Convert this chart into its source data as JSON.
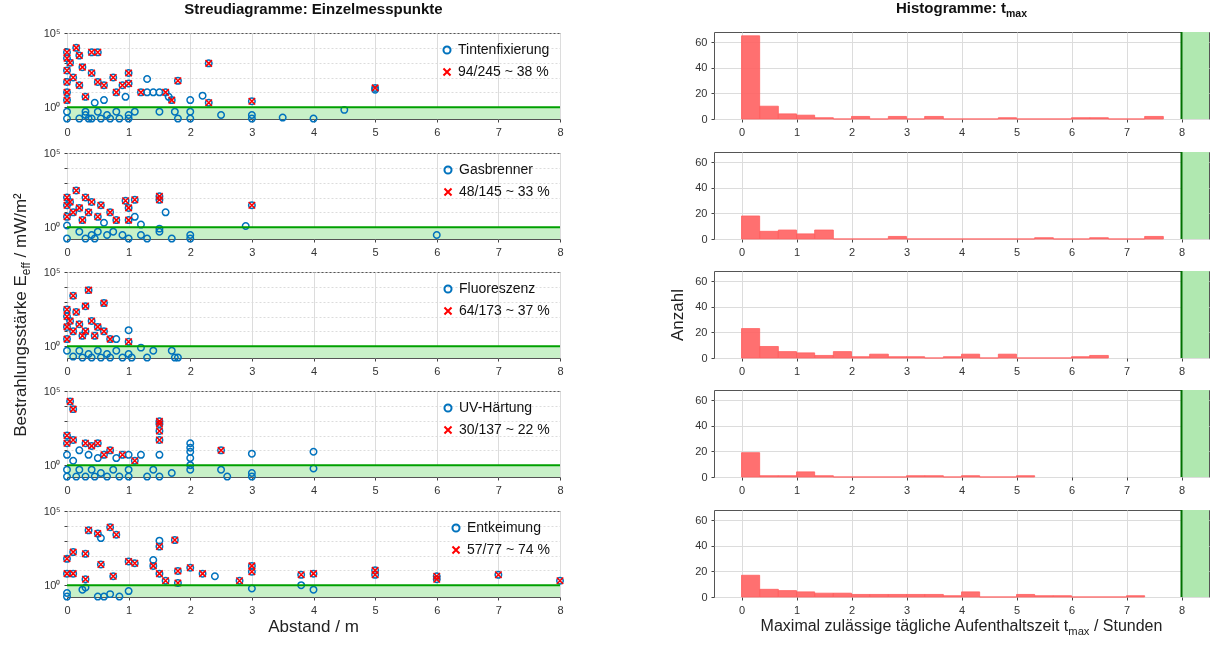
{
  "chart_data": [
    {
      "type": "scatter",
      "title": "Streudiagramme: Einzelmesspunkte",
      "log": "y",
      "xlim": [
        0,
        8
      ],
      "xticks": [
        0,
        1,
        2,
        3,
        4,
        5,
        6,
        7,
        8
      ],
      "ylim": [
        0.16,
        100000
      ],
      "yticks": [
        {
          "value": 1,
          "label": "10⁰"
        },
        {
          "value": 10,
          "label": null
        },
        {
          "value": 100,
          "label": null
        },
        {
          "value": 1000,
          "label": null
        },
        {
          "value": 10000,
          "label": null
        },
        {
          "value": 100000,
          "label": "10⁵"
        }
      ],
      "grid": true,
      "legend": "top right",
      "series": [
        {
          "name": "Tintenfixierung",
          "color": "#0072bd",
          "marker": "circle",
          "x": [
            0,
            0,
            0,
            0,
            0,
            0,
            0,
            0,
            0.05,
            0.1,
            0.15,
            0.2,
            0.2,
            0.25,
            0.3,
            0.3,
            0.35,
            0.4,
            0.4,
            0.45,
            0.5,
            0.5,
            0.5,
            0.55,
            0.6,
            0.6,
            0.65,
            0.7,
            0.75,
            0.8,
            0.8,
            0.85,
            0.9,
            0.95,
            1,
            1,
            1,
            1,
            1.1,
            1.2,
            1.3,
            1.3,
            1.4,
            1.5,
            1.5,
            1.6,
            1.65,
            1.7,
            1.75,
            1.8,
            1.8,
            2,
            2,
            2,
            2.2,
            2.3,
            2.3,
            2.5,
            3,
            3,
            3,
            3.5,
            4,
            4.5,
            5,
            5,
            0.2,
            0.3,
            0.4
          ],
          "values": [
            5000,
            2000,
            300,
            50,
            10,
            3,
            0.5,
            0.17,
            1000,
            100,
            10000,
            3000,
            30,
            500,
            5,
            0.3,
            0.17,
            5000,
            200,
            2,
            5000,
            50,
            0.5,
            0.17,
            30,
            3,
            0.3,
            0.17,
            100,
            10,
            0.5,
            0.17,
            30,
            5,
            200,
            40,
            0.3,
            0.17,
            0.5,
            10,
            80,
            10,
            10,
            10,
            0.5,
            10,
            5,
            3,
            0.5,
            60,
            0.17,
            3,
            0.5,
            0.17,
            6,
            900,
            2,
            0.3,
            2.5,
            0.3,
            0.17,
            0.2,
            0.17,
            0.66,
            20,
            15,
            0.17,
            0.5,
            0.17
          ]
        },
        {
          "name": "94/245 ~ 38 %",
          "color": "#ff0000",
          "marker": "cross",
          "x": [
            0,
            0,
            0,
            0,
            0,
            0,
            0.05,
            0.1,
            0.15,
            0.2,
            0.2,
            0.25,
            0.3,
            0.4,
            0.4,
            0.5,
            0.5,
            0.6,
            0.75,
            0.8,
            0.9,
            1,
            1,
            1.2,
            1.6,
            1.7,
            1.8,
            2.3,
            2.3,
            3,
            5
          ],
          "values": [
            5000,
            2000,
            300,
            50,
            10,
            3,
            1000,
            100,
            10000,
            3000,
            30,
            500,
            5,
            5000,
            200,
            5000,
            50,
            30,
            100,
            10,
            30,
            200,
            40,
            10,
            10,
            3,
            60,
            900,
            2,
            2.5,
            20
          ]
        }
      ],
      "ref_lines": [
        {
          "axis": "y",
          "value": 1,
          "color": "#00a000"
        }
      ],
      "bands": [
        {
          "axis": "y",
          "from": 0.16,
          "to": 1,
          "color": "#c8f0c8"
        }
      ]
    },
    {
      "type": "scatter",
      "log": "y",
      "xlim": [
        0,
        8
      ],
      "xticks": [
        0,
        1,
        2,
        3,
        4,
        5,
        6,
        7,
        8
      ],
      "ylim": [
        0.16,
        100000
      ],
      "yticks": [
        {
          "value": 1,
          "label": "10⁰"
        },
        {
          "value": 10,
          "label": null
        },
        {
          "value": 100,
          "label": null
        },
        {
          "value": 1000,
          "label": null
        },
        {
          "value": 10000,
          "label": null
        },
        {
          "value": 100000,
          "label": "10⁵"
        }
      ],
      "grid": true,
      "legend": "top right",
      "series": [
        {
          "name": "Gasbrenner",
          "color": "#0072bd",
          "marker": "circle",
          "x": [
            0,
            0,
            0,
            0,
            0,
            0.05,
            0.1,
            0.15,
            0.2,
            0.2,
            0.25,
            0.3,
            0.3,
            0.35,
            0.4,
            0.4,
            0.45,
            0.5,
            0.5,
            0.55,
            0.6,
            0.65,
            0.7,
            0.75,
            0.8,
            0.9,
            0.95,
            1,
            1,
            1,
            1.1,
            1.1,
            1.2,
            1.2,
            1.3,
            1.5,
            1.5,
            1.5,
            1.5,
            1.6,
            1.7,
            2,
            2,
            2.9,
            3,
            6
          ],
          "values": [
            100,
            30,
            5,
            1.3,
            0.17,
            50,
            10,
            300,
            20,
            0.5,
            3,
            100,
            0.17,
            10,
            50,
            0.3,
            0.17,
            5,
            0.5,
            30,
            2,
            0.3,
            10,
            0.5,
            3,
            0.3,
            60,
            20,
            3,
            0.17,
            70,
            5,
            1.5,
            0.3,
            0.17,
            120,
            70,
            0.8,
            0.5,
            10,
            0.17,
            0.3,
            0.17,
            1.2,
            30,
            0.3
          ]
        },
        {
          "name": "48/145 ~ 33 %",
          "color": "#ff0000",
          "marker": "cross",
          "x": [
            0,
            0,
            0,
            0.05,
            0.1,
            0.15,
            0.2,
            0.25,
            0.3,
            0.35,
            0.4,
            0.5,
            0.55,
            0.7,
            0.8,
            0.95,
            1,
            1,
            1.1,
            1.5,
            1.5,
            3
          ],
          "values": [
            100,
            30,
            5,
            50,
            10,
            300,
            20,
            3,
            100,
            10,
            50,
            5,
            30,
            10,
            3,
            60,
            20,
            3,
            70,
            120,
            70,
            30
          ]
        }
      ],
      "ref_lines": [
        {
          "axis": "y",
          "value": 1,
          "color": "#00a000"
        }
      ],
      "bands": [
        {
          "axis": "y",
          "from": 0.16,
          "to": 1,
          "color": "#c8f0c8"
        }
      ]
    },
    {
      "type": "scatter",
      "ylabel": "Bestrahlungsstärke E$_{eff}$ / mW/m²",
      "log": "y",
      "xlim": [
        0,
        8
      ],
      "xticks": [
        0,
        1,
        2,
        3,
        4,
        5,
        6,
        7,
        8
      ],
      "ylim": [
        0.16,
        100000
      ],
      "yticks": [
        {
          "value": 1,
          "label": "10⁰"
        },
        {
          "value": 10,
          "label": null
        },
        {
          "value": 100,
          "label": null
        },
        {
          "value": 1000,
          "label": null
        },
        {
          "value": 10000,
          "label": null
        },
        {
          "value": 100000,
          "label": "10⁵"
        }
      ],
      "grid": true,
      "legend": "top right",
      "series": [
        {
          "name": "Fluoreszenz",
          "color": "#0072bd",
          "marker": "circle",
          "x": [
            0,
            0,
            0,
            0,
            0,
            0.05,
            0.1,
            0.1,
            0.1,
            0.15,
            0.2,
            0.2,
            0.25,
            0.25,
            0.3,
            0.3,
            0.35,
            0.35,
            0.4,
            0.4,
            0.45,
            0.5,
            0.5,
            0.55,
            0.6,
            0.6,
            0.65,
            0.7,
            0.7,
            0.8,
            0.8,
            0.9,
            1,
            1,
            1,
            1.05,
            1.2,
            1.3,
            1.4,
            1.7,
            1.75,
            1.8
          ],
          "values": [
            300,
            100,
            20,
            3,
            0.5,
            50,
            2500,
            10,
            0.2,
            200,
            30,
            0.5,
            5,
            0.17,
            500,
            10,
            6000,
            0.3,
            50,
            0.17,
            5,
            20,
            0.5,
            0.17,
            800,
            10,
            0.3,
            3,
            0.17,
            3,
            0.5,
            0.17,
            12,
            2,
            0.3,
            0.17,
            0.8,
            0.17,
            0.5,
            0.5,
            0.17,
            0.17
          ]
        },
        {
          "name": "64/173 ~ 37 %",
          "color": "#ff0000",
          "marker": "cross",
          "x": [
            0,
            0,
            0,
            0,
            0.05,
            0.1,
            0.1,
            0.15,
            0.2,
            0.25,
            0.3,
            0.3,
            0.35,
            0.4,
            0.45,
            0.5,
            0.6,
            0.6,
            0.7,
            1
          ],
          "values": [
            300,
            100,
            20,
            3,
            50,
            2500,
            10,
            200,
            30,
            5,
            500,
            10,
            6000,
            50,
            5,
            20,
            800,
            10,
            3,
            2
          ]
        }
      ],
      "ref_lines": [
        {
          "axis": "y",
          "value": 1,
          "color": "#00a000"
        }
      ],
      "bands": [
        {
          "axis": "y",
          "from": 0.16,
          "to": 1,
          "color": "#c8f0c8"
        }
      ]
    },
    {
      "type": "scatter",
      "log": "y",
      "xlim": [
        0,
        8
      ],
      "xticks": [
        0,
        1,
        2,
        3,
        4,
        5,
        6,
        7,
        8
      ],
      "ylim": [
        0.16,
        100000
      ],
      "yticks": [
        {
          "value": 1,
          "label": "10⁰"
        },
        {
          "value": 10,
          "label": null
        },
        {
          "value": 100,
          "label": null
        },
        {
          "value": 1000,
          "label": null
        },
        {
          "value": 10000,
          "label": null
        },
        {
          "value": 100000,
          "label": "10⁵"
        }
      ],
      "grid": true,
      "legend": "top right",
      "series": [
        {
          "name": "UV-Härtung",
          "color": "#0072bd",
          "marker": "circle",
          "x": [
            0,
            0,
            0,
            0,
            0,
            0.05,
            0.1,
            0.1,
            0.1,
            0.15,
            0.2,
            0.2,
            0.3,
            0.3,
            0.35,
            0.4,
            0.4,
            0.45,
            0.5,
            0.5,
            0.55,
            0.6,
            0.65,
            0.7,
            0.75,
            0.8,
            0.85,
            0.9,
            1,
            1,
            1,
            1.1,
            1.2,
            1.3,
            1.4,
            1.5,
            1.5,
            1.5,
            1.5,
            1.5,
            1.5,
            1.7,
            2,
            2,
            2,
            2,
            2,
            2,
            2.5,
            2.5,
            2.6,
            3,
            3,
            3,
            4,
            4
          ],
          "values": [
            100,
            30,
            5,
            0.5,
            0.17,
            20000,
            6000,
            50,
            2,
            0.17,
            10,
            0.5,
            30,
            0.17,
            5,
            20,
            0.5,
            0.17,
            30,
            3,
            0.3,
            5,
            0.17,
            10,
            0.5,
            3,
            0.17,
            5,
            5,
            0.5,
            0.17,
            2,
            5,
            0.17,
            0.5,
            900,
            600,
            200,
            50,
            5,
            0.17,
            0.3,
            30,
            15,
            8,
            3,
            1,
            0.5,
            10,
            0.5,
            0.17,
            6,
            0.3,
            0.17,
            8,
            0.6
          ]
        },
        {
          "name": "30/137 ~ 22 %",
          "color": "#ff0000",
          "marker": "cross",
          "x": [
            0,
            0,
            0.05,
            0.1,
            0.1,
            0.3,
            0.4,
            0.5,
            0.6,
            0.7,
            0.9,
            1.1,
            1.5,
            1.5,
            1.5,
            1.5,
            2.5
          ],
          "values": [
            100,
            30,
            20000,
            6000,
            50,
            30,
            20,
            30,
            5,
            10,
            5,
            2,
            900,
            600,
            200,
            50,
            10
          ]
        }
      ],
      "ref_lines": [
        {
          "axis": "y",
          "value": 1,
          "color": "#00a000"
        }
      ],
      "bands": [
        {
          "axis": "y",
          "from": 0.16,
          "to": 1,
          "color": "#c8f0c8"
        }
      ]
    },
    {
      "type": "scatter",
      "xlabel": "Abstand / m",
      "log": "y",
      "xlim": [
        0,
        8
      ],
      "xticks": [
        0,
        1,
        2,
        3,
        4,
        5,
        6,
        7,
        8
      ],
      "ylim": [
        0.16,
        100000
      ],
      "yticks": [
        {
          "value": 1,
          "label": "10⁰"
        },
        {
          "value": 10,
          "label": null
        },
        {
          "value": 100,
          "label": null
        },
        {
          "value": 1000,
          "label": null
        },
        {
          "value": 10000,
          "label": null
        },
        {
          "value": 100000,
          "label": "10⁵"
        }
      ],
      "grid": true,
      "legend": "top right",
      "series": [
        {
          "name": "Entkeimung",
          "color": "#0072bd",
          "marker": "circle",
          "x": [
            0,
            0,
            0,
            0,
            0.1,
            0.1,
            0.25,
            0.3,
            0.3,
            0.3,
            0.35,
            0.5,
            0.5,
            0.55,
            0.55,
            0.6,
            0.7,
            0.7,
            0.75,
            0.8,
            0.85,
            1,
            1,
            1.1,
            1.4,
            1.4,
            1.5,
            1.5,
            1.5,
            1.6,
            1.75,
            1.8,
            1.8,
            2,
            2.2,
            2.4,
            2.8,
            3,
            3,
            3,
            3.8,
            3.8,
            4,
            4,
            5,
            5,
            6,
            6,
            7,
            8
          ],
          "values": [
            60,
            6,
            0.3,
            0.17,
            170,
            6,
            0.5,
            130,
            2.5,
            0.7,
            5000,
            3000,
            0.17,
            1500,
            25,
            0.17,
            8000,
            0.25,
            4,
            2500,
            0.17,
            40,
            0.4,
            30,
            50,
            20,
            1000,
            400,
            6,
            2,
            1100,
            9,
            1.4,
            15,
            6,
            4,
            2,
            20,
            8,
            0.6,
            5,
            1,
            6,
            0.5,
            10,
            5,
            4,
            2.5,
            5,
            2
          ]
        },
        {
          "name": "57/77 ~ 74 %",
          "color": "#ff0000",
          "marker": "cross",
          "x": [
            0,
            0,
            0.1,
            0.1,
            0.3,
            0.3,
            0.35,
            0.5,
            0.55,
            0.7,
            0.75,
            0.8,
            1,
            1.1,
            1.4,
            1.5,
            1.5,
            1.6,
            1.75,
            1.8,
            1.8,
            2,
            2.2,
            2.8,
            3,
            3,
            3.8,
            4,
            5,
            5,
            6,
            6,
            7,
            8
          ],
          "values": [
            60,
            6,
            170,
            6,
            130,
            2.5,
            5000,
            3000,
            25,
            8000,
            4,
            2500,
            40,
            30,
            20,
            400,
            6,
            2,
            1100,
            9,
            1.4,
            15,
            6,
            2,
            20,
            8,
            5,
            6,
            10,
            5,
            4,
            2.5,
            5,
            2
          ]
        }
      ],
      "ref_lines": [
        {
          "axis": "y",
          "value": 1,
          "color": "#00a000"
        }
      ],
      "bands": [
        {
          "axis": "y",
          "from": 0.16,
          "to": 1,
          "color": "#c8f0c8"
        }
      ]
    },
    {
      "type": "histogram",
      "title": "Histogramme: t$_{max}$",
      "color": "#ff6060",
      "bins": [
        0,
        0.33,
        0.67,
        1,
        1.33,
        1.67,
        2,
        2.33,
        2.67,
        3,
        3.33,
        3.67,
        4.67,
        5,
        6,
        6.33,
        6.67,
        7.33,
        7.67
      ],
      "values": [
        65,
        10,
        4,
        3,
        1,
        0,
        2,
        0,
        2,
        0,
        2,
        0,
        1,
        0,
        1,
        1,
        0,
        2
      ],
      "xlim": [
        -0.5,
        8.5
      ],
      "xticks": [
        0,
        1,
        2,
        3,
        4,
        5,
        6,
        7,
        8
      ],
      "ylim": [
        0,
        68
      ],
      "yticks": [
        0,
        20,
        40,
        60
      ],
      "grid": true,
      "ref_lines": [
        {
          "axis": "x",
          "value": 8,
          "color": "#007000"
        }
      ],
      "bands": [
        {
          "axis": "x",
          "from": 8,
          "to": 8.5,
          "color": "#b0e8b0"
        }
      ]
    },
    {
      "type": "histogram",
      "color": "#ff6060",
      "bins": [
        0,
        0.33,
        0.67,
        1,
        1.33,
        1.67,
        2.67,
        3,
        5.33,
        5.67,
        6.33,
        6.67,
        7.33,
        7.67
      ],
      "values": [
        18,
        6,
        7,
        4,
        7,
        0,
        2,
        0,
        1,
        0,
        1,
        0,
        2
      ],
      "xlim": [
        -0.5,
        8.5
      ],
      "xticks": [
        0,
        1,
        2,
        3,
        4,
        5,
        6,
        7,
        8
      ],
      "ylim": [
        0,
        68
      ],
      "yticks": [
        0,
        20,
        40,
        60
      ],
      "grid": true,
      "ref_lines": [
        {
          "axis": "x",
          "value": 8,
          "color": "#007000"
        }
      ],
      "bands": [
        {
          "axis": "x",
          "from": 8,
          "to": 8.5,
          "color": "#b0e8b0"
        }
      ]
    },
    {
      "type": "histogram",
      "ylabel": "Anzahl",
      "color": "#ff6060",
      "bins": [
        0,
        0.33,
        0.67,
        1,
        1.33,
        1.67,
        2,
        2.33,
        2.67,
        3,
        3.33,
        3.67,
        4,
        4.33,
        4.67,
        5,
        6,
        6.33,
        6.67
      ],
      "values": [
        23,
        9,
        5,
        4,
        2,
        5,
        1,
        3,
        1,
        1,
        0,
        1,
        3,
        0,
        3,
        0,
        1,
        2
      ],
      "xlim": [
        -0.5,
        8.5
      ],
      "xticks": [
        0,
        1,
        2,
        3,
        4,
        5,
        6,
        7,
        8
      ],
      "ylim": [
        0,
        68
      ],
      "yticks": [
        0,
        20,
        40,
        60
      ],
      "grid": true,
      "ref_lines": [
        {
          "axis": "x",
          "value": 8,
          "color": "#007000"
        }
      ],
      "bands": [
        {
          "axis": "x",
          "from": 8,
          "to": 8.5,
          "color": "#b0e8b0"
        }
      ]
    },
    {
      "type": "histogram",
      "color": "#ff6060",
      "bins": [
        0,
        0.33,
        0.67,
        1,
        1.33,
        1.67,
        3,
        3.33,
        3.67,
        4,
        4.33,
        5,
        5.33
      ],
      "values": [
        19,
        1,
        1,
        4,
        1,
        0,
        1,
        1,
        0,
        1,
        0,
        1
      ],
      "xlim": [
        -0.5,
        8.5
      ],
      "xticks": [
        0,
        1,
        2,
        3,
        4,
        5,
        6,
        7,
        8
      ],
      "ylim": [
        0,
        68
      ],
      "yticks": [
        0,
        20,
        40,
        60
      ],
      "grid": true,
      "ref_lines": [
        {
          "axis": "x",
          "value": 8,
          "color": "#007000"
        }
      ],
      "bands": [
        {
          "axis": "x",
          "from": 8,
          "to": 8.5,
          "color": "#b0e8b0"
        }
      ]
    },
    {
      "type": "histogram",
      "xlabel": "Maximal zulässige tägliche Aufenthaltszeit t$_{max}$ / Stunden",
      "color": "#ff6060",
      "bins": [
        0,
        0.33,
        0.67,
        1,
        1.33,
        1.67,
        2,
        2.33,
        2.67,
        3,
        3.33,
        3.67,
        4,
        4.33,
        5,
        5.33,
        5.67,
        6,
        7,
        7.33
      ],
      "values": [
        17,
        6,
        5,
        4,
        3,
        3,
        2,
        2,
        2,
        2,
        2,
        1,
        4,
        0,
        2,
        1,
        1,
        0,
        1
      ],
      "xlim": [
        -0.5,
        8.5
      ],
      "xticks": [
        0,
        1,
        2,
        3,
        4,
        5,
        6,
        7,
        8
      ],
      "ylim": [
        0,
        68
      ],
      "yticks": [
        0,
        20,
        40,
        60
      ],
      "grid": true,
      "ref_lines": [
        {
          "axis": "x",
          "value": 8,
          "color": "#007000"
        }
      ],
      "bands": [
        {
          "axis": "x",
          "from": 8,
          "to": 8.5,
          "color": "#b0e8b0"
        }
      ]
    }
  ]
}
